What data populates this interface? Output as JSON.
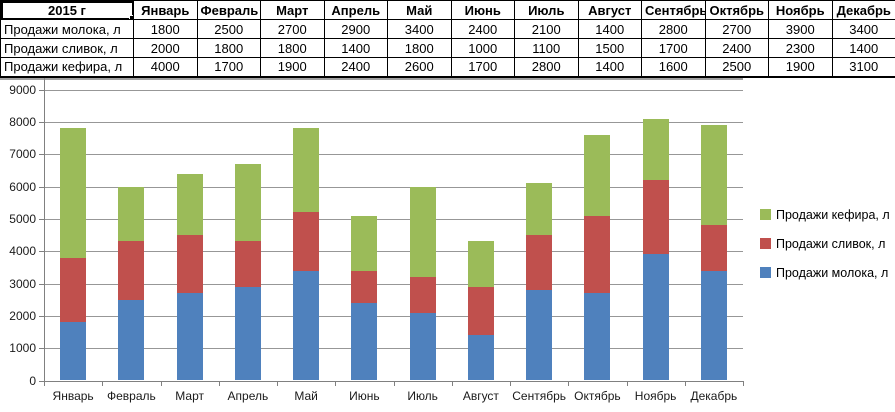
{
  "table": {
    "corner_label": "2015 г",
    "months": [
      "Январь",
      "Февраль",
      "Март",
      "Апрель",
      "Май",
      "Июнь",
      "Июль",
      "Август",
      "Сентябрь",
      "Октябрь",
      "Ноябрь",
      "Декабрь"
    ],
    "rows": [
      {
        "label": "Продажи молока, л",
        "values": [
          1800,
          2500,
          2700,
          2900,
          3400,
          2400,
          2100,
          1400,
          2800,
          2700,
          3900,
          3400
        ]
      },
      {
        "label": "Продажи сливок, л",
        "values": [
          2000,
          1800,
          1800,
          1400,
          1800,
          1000,
          1100,
          1500,
          1700,
          2400,
          2300,
          1400
        ]
      },
      {
        "label": "Продажи кефира, л",
        "values": [
          4000,
          1700,
          1900,
          2400,
          2600,
          1700,
          2800,
          1400,
          1600,
          2500,
          1900,
          3100
        ]
      }
    ]
  },
  "chart_data": {
    "type": "bar",
    "stacked": true,
    "title": "",
    "xlabel": "",
    "ylabel": "",
    "categories": [
      "Январь",
      "Февраль",
      "Март",
      "Апрель",
      "Май",
      "Июнь",
      "Июль",
      "Август",
      "Сентябрь",
      "Октябрь",
      "Ноябрь",
      "Декабрь"
    ],
    "series": [
      {
        "name": "Продажи молока, л",
        "key": "milk",
        "color": "#4F81BD",
        "values": [
          1800,
          2500,
          2700,
          2900,
          3400,
          2400,
          2100,
          1400,
          2800,
          2700,
          3900,
          3400
        ]
      },
      {
        "name": "Продажи сливок, л",
        "key": "cream",
        "color": "#C0504D",
        "values": [
          2000,
          1800,
          1800,
          1400,
          1800,
          1000,
          1100,
          1500,
          1700,
          2400,
          2300,
          1400
        ]
      },
      {
        "name": "Продажи кефира, л",
        "key": "kefir",
        "color": "#9BBB59",
        "values": [
          4000,
          1700,
          1900,
          2400,
          2600,
          1700,
          2800,
          1400,
          1600,
          2500,
          1900,
          3100
        ]
      }
    ],
    "ylim": [
      0,
      9000
    ],
    "ytick_step": 1000,
    "grid": true,
    "legend_position": "right",
    "legend_order_top_to_bottom": [
      "Продажи кефира, л",
      "Продажи сливок, л",
      "Продажи молока, л"
    ]
  },
  "colors": {
    "axis": "#808080",
    "gridline": "#979797",
    "chart_frame": "#A0A0A0",
    "table_border": "#000000",
    "text": "#000000",
    "axis_text": "#1a1a1a"
  }
}
